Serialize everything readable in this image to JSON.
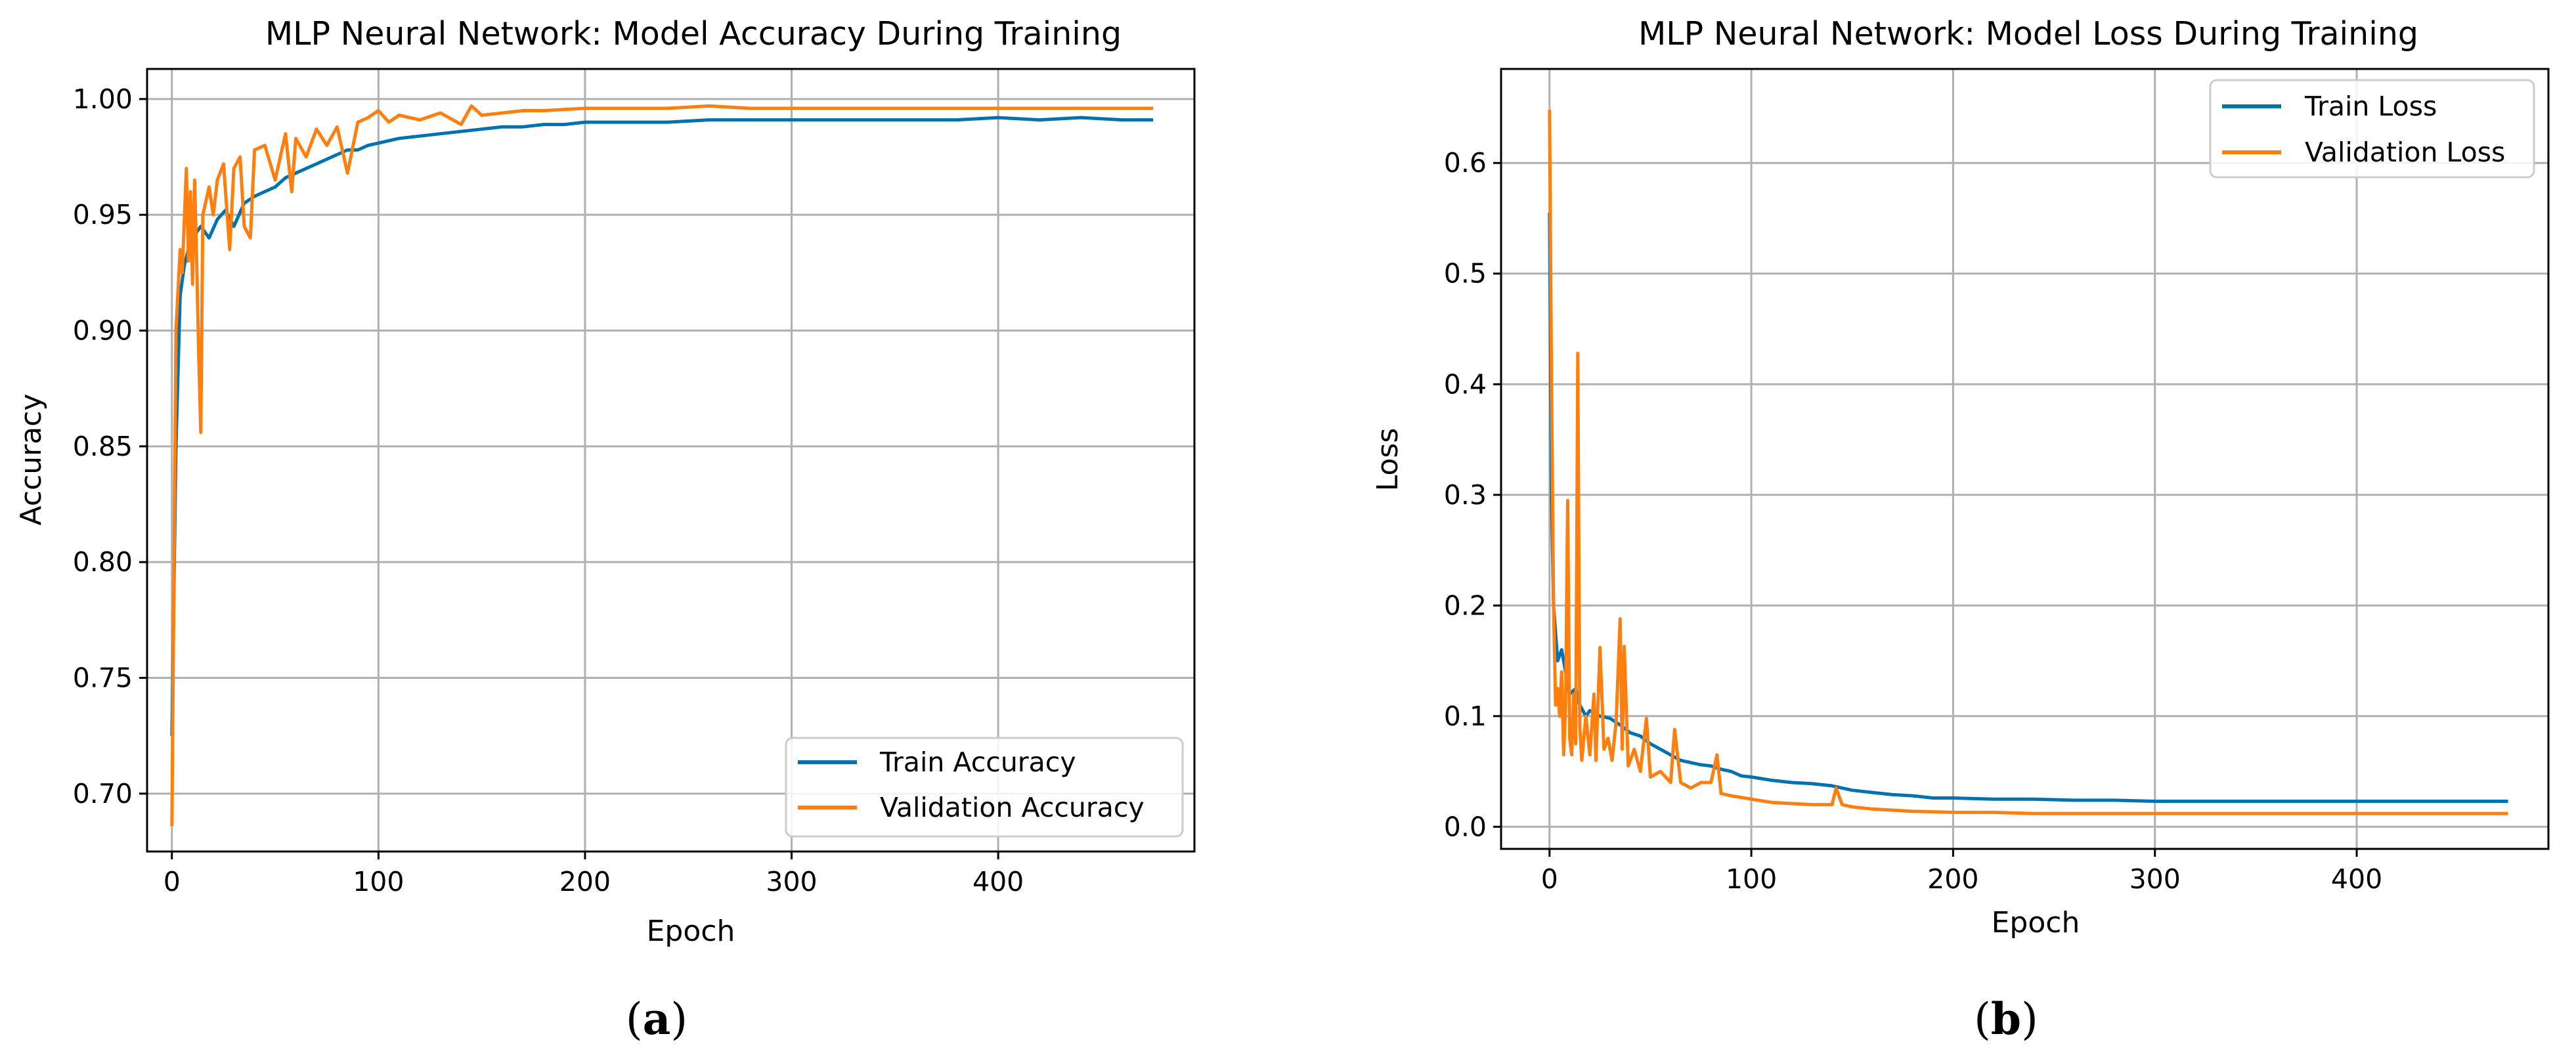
{
  "colors": {
    "train": "#0072B2",
    "validation": "#FF7F0E",
    "grid": "#b0b0b0",
    "axes": "#000000"
  },
  "captions": {
    "a_open": "(",
    "a_letter": "a",
    "a_close": ")",
    "b_open": "(",
    "b_letter": "b",
    "b_close": ")"
  },
  "chart_data": [
    {
      "type": "line",
      "title": "MLP Neural Network: Model Accuracy During Training",
      "xlabel": "Epoch",
      "ylabel": "Accuracy",
      "xlim": [
        -12,
        495
      ],
      "ylim": [
        0.675,
        1.013
      ],
      "xticks": [
        0,
        100,
        200,
        300,
        400
      ],
      "xtick_labels": [
        "0",
        "100",
        "200",
        "300",
        "400"
      ],
      "yticks": [
        0.7,
        0.75,
        0.8,
        0.85,
        0.9,
        0.95,
        1.0
      ],
      "ytick_labels": [
        "0.70",
        "0.75",
        "0.80",
        "0.85",
        "0.90",
        "0.95",
        "1.00"
      ],
      "grid": true,
      "legend_loc": "lower-right",
      "series": [
        {
          "name": "Train Accuracy",
          "color_key": "train",
          "points": [
            [
              0,
              0.725
            ],
            [
              2,
              0.85
            ],
            [
              4,
              0.915
            ],
            [
              6,
              0.928
            ],
            [
              8,
              0.935
            ],
            [
              10,
              0.94
            ],
            [
              14,
              0.945
            ],
            [
              18,
              0.94
            ],
            [
              22,
              0.948
            ],
            [
              26,
              0.952
            ],
            [
              30,
              0.945
            ],
            [
              35,
              0.955
            ],
            [
              40,
              0.958
            ],
            [
              45,
              0.96
            ],
            [
              50,
              0.962
            ],
            [
              55,
              0.966
            ],
            [
              60,
              0.968
            ],
            [
              65,
              0.97
            ],
            [
              70,
              0.972
            ],
            [
              75,
              0.974
            ],
            [
              80,
              0.976
            ],
            [
              85,
              0.978
            ],
            [
              90,
              0.978
            ],
            [
              95,
              0.98
            ],
            [
              100,
              0.981
            ],
            [
              110,
              0.983
            ],
            [
              120,
              0.984
            ],
            [
              130,
              0.985
            ],
            [
              140,
              0.986
            ],
            [
              150,
              0.987
            ],
            [
              160,
              0.988
            ],
            [
              170,
              0.988
            ],
            [
              180,
              0.989
            ],
            [
              190,
              0.989
            ],
            [
              200,
              0.99
            ],
            [
              220,
              0.99
            ],
            [
              240,
              0.99
            ],
            [
              260,
              0.991
            ],
            [
              280,
              0.991
            ],
            [
              300,
              0.991
            ],
            [
              320,
              0.991
            ],
            [
              340,
              0.991
            ],
            [
              360,
              0.991
            ],
            [
              380,
              0.991
            ],
            [
              400,
              0.992
            ],
            [
              420,
              0.991
            ],
            [
              440,
              0.992
            ],
            [
              460,
              0.991
            ],
            [
              475,
              0.991
            ]
          ]
        },
        {
          "name": "Validation Accuracy",
          "color_key": "validation",
          "points": [
            [
              0,
              0.686
            ],
            [
              2,
              0.9
            ],
            [
              4,
              0.935
            ],
            [
              5,
              0.925
            ],
            [
              7,
              0.97
            ],
            [
              8,
              0.93
            ],
            [
              9,
              0.96
            ],
            [
              10,
              0.92
            ],
            [
              11,
              0.965
            ],
            [
              12,
              0.93
            ],
            [
              13,
              0.89
            ],
            [
              14,
              0.856
            ],
            [
              15,
              0.95
            ],
            [
              18,
              0.962
            ],
            [
              20,
              0.95
            ],
            [
              22,
              0.965
            ],
            [
              25,
              0.972
            ],
            [
              28,
              0.935
            ],
            [
              30,
              0.97
            ],
            [
              33,
              0.975
            ],
            [
              35,
              0.945
            ],
            [
              38,
              0.94
            ],
            [
              40,
              0.978
            ],
            [
              45,
              0.98
            ],
            [
              50,
              0.965
            ],
            [
              55,
              0.985
            ],
            [
              58,
              0.96
            ],
            [
              60,
              0.983
            ],
            [
              65,
              0.975
            ],
            [
              70,
              0.987
            ],
            [
              75,
              0.98
            ],
            [
              80,
              0.988
            ],
            [
              85,
              0.968
            ],
            [
              90,
              0.99
            ],
            [
              95,
              0.992
            ],
            [
              100,
              0.995
            ],
            [
              105,
              0.99
            ],
            [
              110,
              0.993
            ],
            [
              120,
              0.991
            ],
            [
              130,
              0.994
            ],
            [
              140,
              0.989
            ],
            [
              145,
              0.997
            ],
            [
              150,
              0.993
            ],
            [
              160,
              0.994
            ],
            [
              170,
              0.995
            ],
            [
              180,
              0.995
            ],
            [
              200,
              0.996
            ],
            [
              220,
              0.996
            ],
            [
              240,
              0.996
            ],
            [
              260,
              0.997
            ],
            [
              280,
              0.996
            ],
            [
              300,
              0.996
            ],
            [
              320,
              0.996
            ],
            [
              340,
              0.996
            ],
            [
              360,
              0.996
            ],
            [
              380,
              0.996
            ],
            [
              400,
              0.996
            ],
            [
              420,
              0.996
            ],
            [
              440,
              0.996
            ],
            [
              460,
              0.996
            ],
            [
              475,
              0.996
            ]
          ]
        }
      ]
    },
    {
      "type": "line",
      "title": "MLP Neural Network: Model Loss During Training",
      "xlabel": "Epoch",
      "ylabel": "Loss",
      "xlim": [
        -24,
        495
      ],
      "ylim": [
        -0.02,
        0.685
      ],
      "xticks": [
        0,
        100,
        200,
        300,
        400
      ],
      "xtick_labels": [
        "0",
        "100",
        "200",
        "300",
        "400"
      ],
      "yticks": [
        0.0,
        0.1,
        0.2,
        0.3,
        0.4,
        0.5,
        0.6
      ],
      "ytick_labels": [
        "0.0",
        "0.1",
        "0.2",
        "0.3",
        "0.4",
        "0.5",
        "0.6"
      ],
      "grid": true,
      "legend_loc": "upper-right",
      "series": [
        {
          "name": "Train Loss",
          "color_key": "train",
          "points": [
            [
              0,
              0.555
            ],
            [
              1,
              0.3
            ],
            [
              2,
              0.2
            ],
            [
              4,
              0.15
            ],
            [
              6,
              0.16
            ],
            [
              8,
              0.14
            ],
            [
              10,
              0.12
            ],
            [
              13,
              0.125
            ],
            [
              15,
              0.11
            ],
            [
              18,
              0.1
            ],
            [
              20,
              0.105
            ],
            [
              25,
              0.1
            ],
            [
              30,
              0.098
            ],
            [
              35,
              0.092
            ],
            [
              40,
              0.085
            ],
            [
              45,
              0.082
            ],
            [
              50,
              0.075
            ],
            [
              55,
              0.07
            ],
            [
              60,
              0.065
            ],
            [
              65,
              0.06
            ],
            [
              70,
              0.058
            ],
            [
              75,
              0.056
            ],
            [
              80,
              0.055
            ],
            [
              85,
              0.052
            ],
            [
              90,
              0.05
            ],
            [
              95,
              0.046
            ],
            [
              100,
              0.045
            ],
            [
              110,
              0.042
            ],
            [
              120,
              0.04
            ],
            [
              130,
              0.039
            ],
            [
              140,
              0.037
            ],
            [
              150,
              0.033
            ],
            [
              160,
              0.031
            ],
            [
              170,
              0.029
            ],
            [
              180,
              0.028
            ],
            [
              190,
              0.026
            ],
            [
              200,
              0.026
            ],
            [
              220,
              0.025
            ],
            [
              240,
              0.025
            ],
            [
              260,
              0.024
            ],
            [
              280,
              0.024
            ],
            [
              300,
              0.023
            ],
            [
              320,
              0.023
            ],
            [
              340,
              0.023
            ],
            [
              360,
              0.023
            ],
            [
              380,
              0.023
            ],
            [
              400,
              0.023
            ],
            [
              420,
              0.023
            ],
            [
              440,
              0.023
            ],
            [
              460,
              0.023
            ],
            [
              475,
              0.023
            ]
          ]
        },
        {
          "name": "Validation Loss",
          "color_key": "validation",
          "points": [
            [
              0,
              0.648
            ],
            [
              1,
              0.4
            ],
            [
              2,
              0.2
            ],
            [
              3,
              0.11
            ],
            [
              4,
              0.125
            ],
            [
              5,
              0.1
            ],
            [
              6,
              0.14
            ],
            [
              7,
              0.065
            ],
            [
              8,
              0.11
            ],
            [
              9,
              0.295
            ],
            [
              10,
              0.08
            ],
            [
              11,
              0.065
            ],
            [
              12,
              0.12
            ],
            [
              13,
              0.075
            ],
            [
              14,
              0.428
            ],
            [
              15,
              0.09
            ],
            [
              16,
              0.06
            ],
            [
              18,
              0.1
            ],
            [
              20,
              0.065
            ],
            [
              22,
              0.12
            ],
            [
              23,
              0.06
            ],
            [
              25,
              0.162
            ],
            [
              27,
              0.07
            ],
            [
              29,
              0.08
            ],
            [
              31,
              0.06
            ],
            [
              33,
              0.095
            ],
            [
              35,
              0.188
            ],
            [
              36,
              0.07
            ],
            [
              37,
              0.163
            ],
            [
              39,
              0.055
            ],
            [
              42,
              0.07
            ],
            [
              45,
              0.05
            ],
            [
              48,
              0.098
            ],
            [
              50,
              0.045
            ],
            [
              55,
              0.05
            ],
            [
              60,
              0.04
            ],
            [
              62,
              0.088
            ],
            [
              65,
              0.04
            ],
            [
              70,
              0.035
            ],
            [
              75,
              0.04
            ],
            [
              80,
              0.04
            ],
            [
              83,
              0.065
            ],
            [
              85,
              0.03
            ],
            [
              90,
              0.028
            ],
            [
              100,
              0.025
            ],
            [
              110,
              0.022
            ],
            [
              120,
              0.021
            ],
            [
              130,
              0.02
            ],
            [
              140,
              0.02
            ],
            [
              142,
              0.035
            ],
            [
              145,
              0.02
            ],
            [
              150,
              0.018
            ],
            [
              160,
              0.016
            ],
            [
              170,
              0.015
            ],
            [
              180,
              0.014
            ],
            [
              200,
              0.013
            ],
            [
              220,
              0.013
            ],
            [
              240,
              0.012
            ],
            [
              260,
              0.012
            ],
            [
              280,
              0.012
            ],
            [
              300,
              0.012
            ],
            [
              320,
              0.012
            ],
            [
              340,
              0.012
            ],
            [
              360,
              0.012
            ],
            [
              380,
              0.012
            ],
            [
              400,
              0.012
            ],
            [
              420,
              0.012
            ],
            [
              440,
              0.012
            ],
            [
              460,
              0.012
            ],
            [
              475,
              0.012
            ]
          ]
        }
      ]
    }
  ]
}
